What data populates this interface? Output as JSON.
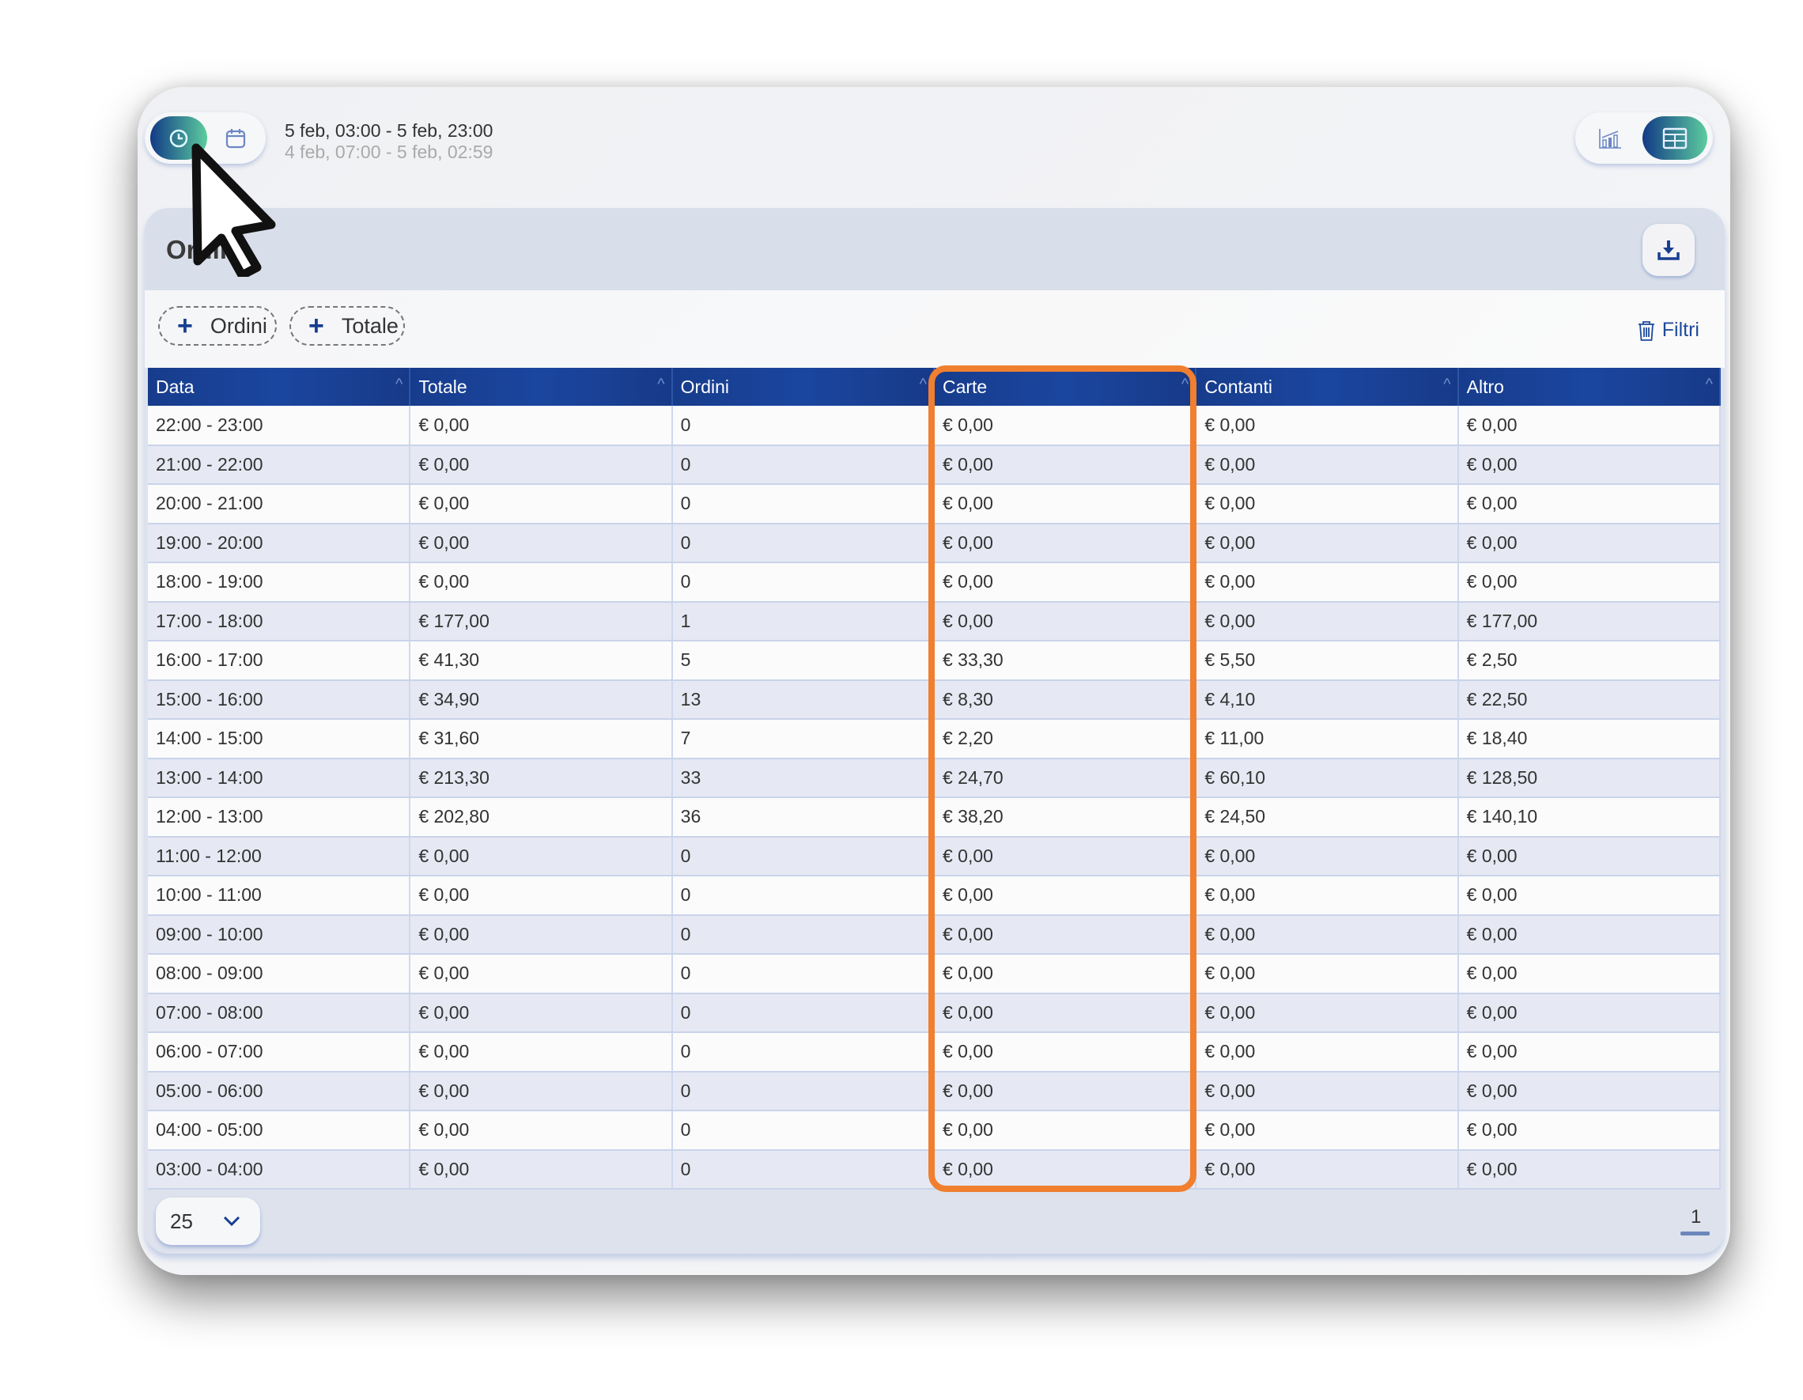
{
  "header": {
    "mode_buttons": [
      {
        "icon": "clock-icon",
        "active": true
      },
      {
        "icon": "calendar-icon",
        "active": false
      }
    ],
    "date_range": "5 feb, 03:00 - 5 feb, 23:00",
    "compare_range": "4 feb, 07:00 - 5 feb, 02:59",
    "view_buttons": [
      {
        "icon": "bar-chart-icon",
        "active": false
      },
      {
        "icon": "table-icon",
        "active": true
      }
    ]
  },
  "panel": {
    "title": "Ordini",
    "download_icon": "download-icon",
    "chips": [
      "Ordini",
      "Totale"
    ],
    "filters_label": "Filtri",
    "columns": [
      "Data",
      "Totale",
      "Ordini",
      "Carte",
      "Contanti",
      "Altro"
    ],
    "rows": [
      [
        "22:00 - 23:00",
        "€ 0,00",
        "0",
        "€ 0,00",
        "€ 0,00",
        "€ 0,00"
      ],
      [
        "21:00 - 22:00",
        "€ 0,00",
        "0",
        "€ 0,00",
        "€ 0,00",
        "€ 0,00"
      ],
      [
        "20:00 - 21:00",
        "€ 0,00",
        "0",
        "€ 0,00",
        "€ 0,00",
        "€ 0,00"
      ],
      [
        "19:00 - 20:00",
        "€ 0,00",
        "0",
        "€ 0,00",
        "€ 0,00",
        "€ 0,00"
      ],
      [
        "18:00 - 19:00",
        "€ 0,00",
        "0",
        "€ 0,00",
        "€ 0,00",
        "€ 0,00"
      ],
      [
        "17:00 - 18:00",
        "€ 177,00",
        "1",
        "€ 0,00",
        "€ 0,00",
        "€ 177,00"
      ],
      [
        "16:00 - 17:00",
        "€ 41,30",
        "5",
        "€ 33,30",
        "€ 5,50",
        "€ 2,50"
      ],
      [
        "15:00 - 16:00",
        "€ 34,90",
        "13",
        "€ 8,30",
        "€ 4,10",
        "€ 22,50"
      ],
      [
        "14:00 - 15:00",
        "€ 31,60",
        "7",
        "€ 2,20",
        "€ 11,00",
        "€ 18,40"
      ],
      [
        "13:00 - 14:00",
        "€ 213,30",
        "33",
        "€ 24,70",
        "€ 60,10",
        "€ 128,50"
      ],
      [
        "12:00 - 13:00",
        "€ 202,80",
        "36",
        "€ 38,20",
        "€ 24,50",
        "€ 140,10"
      ],
      [
        "11:00 - 12:00",
        "€ 0,00",
        "0",
        "€ 0,00",
        "€ 0,00",
        "€ 0,00"
      ],
      [
        "10:00 - 11:00",
        "€ 0,00",
        "0",
        "€ 0,00",
        "€ 0,00",
        "€ 0,00"
      ],
      [
        "09:00 - 10:00",
        "€ 0,00",
        "0",
        "€ 0,00",
        "€ 0,00",
        "€ 0,00"
      ],
      [
        "08:00 - 09:00",
        "€ 0,00",
        "0",
        "€ 0,00",
        "€ 0,00",
        "€ 0,00"
      ],
      [
        "07:00 - 08:00",
        "€ 0,00",
        "0",
        "€ 0,00",
        "€ 0,00",
        "€ 0,00"
      ],
      [
        "06:00 - 07:00",
        "€ 0,00",
        "0",
        "€ 0,00",
        "€ 0,00",
        "€ 0,00"
      ],
      [
        "05:00 - 06:00",
        "€ 0,00",
        "0",
        "€ 0,00",
        "€ 0,00",
        "€ 0,00"
      ],
      [
        "04:00 - 05:00",
        "€ 0,00",
        "0",
        "€ 0,00",
        "€ 0,00",
        "€ 0,00"
      ],
      [
        "03:00 - 04:00",
        "€ 0,00",
        "0",
        "€ 0,00",
        "€ 0,00",
        "€ 0,00"
      ]
    ],
    "highlighted_column": "Carte",
    "highlight_color": "#f07f2f",
    "page_size": "25",
    "current_page": "1"
  }
}
